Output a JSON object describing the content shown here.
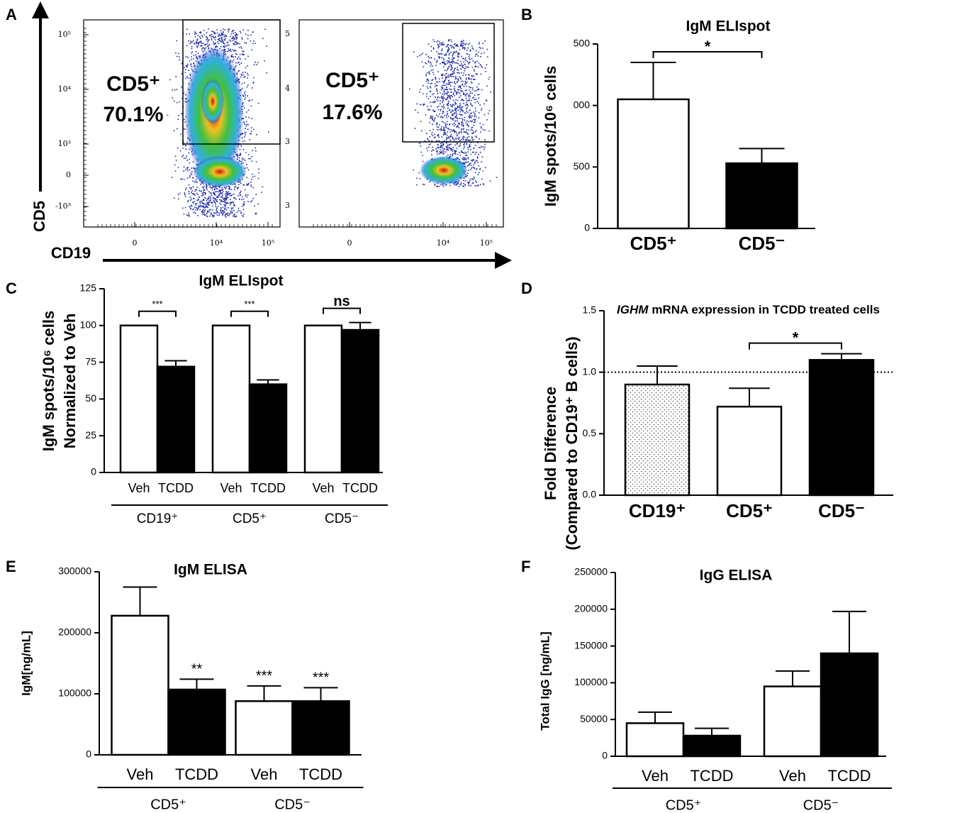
{
  "chart_data": [
    {
      "type": "flow",
      "panel": "A",
      "y_label": "CD5",
      "x_label": "CD19",
      "yticks": [
        {
          "value": 100000,
          "label": "10⁵"
        },
        {
          "value": 10000,
          "label": "10⁴"
        },
        {
          "value": 1000,
          "label": "10³"
        },
        0,
        {
          "value": -1000,
          "label": "-10³"
        }
      ],
      "xticks": [
        0,
        {
          "value": 10000,
          "label": "10⁴"
        },
        {
          "value": 100000,
          "label": "10⁵"
        }
      ],
      "plots": [
        {
          "gate_label": "CD5⁺",
          "percent": "70.1%"
        },
        {
          "gate_label": "CD5⁺",
          "percent": "17.6%",
          "y_tick_fragments": [
            "5",
            "4",
            "3",
            "3"
          ]
        }
      ]
    },
    {
      "type": "bar",
      "panel": "B",
      "title": "IgM ELIspot",
      "y_label": "IgM spots/10⁶ cells",
      "categories": [
        "CD5⁺",
        "CD5⁻"
      ],
      "values": [
        1050,
        530
      ],
      "errors": [
        300,
        120
      ],
      "colors": [
        "#ffffff",
        "#000000"
      ],
      "ylim": [
        0,
        1500
      ],
      "yticks": [
        0,
        500,
        {
          "value": 1000,
          "label": "000"
        },
        {
          "value": 1500,
          "label": "500"
        }
      ],
      "significance": [
        {
          "between": [
            0,
            1
          ],
          "label": "*"
        }
      ]
    },
    {
      "type": "grouped_bar",
      "panel": "C",
      "title": "IgM ELIspot",
      "y_label": [
        "IgM spots/10⁶ cells",
        "Normalized to Veh"
      ],
      "groups": [
        "CD19⁺",
        "CD5⁺",
        "CD5⁻"
      ],
      "series": [
        {
          "name": "Veh",
          "color": "#ffffff",
          "values": [
            100,
            100,
            100
          ]
        },
        {
          "name": "TCDD",
          "color": "#000000",
          "values": [
            72,
            60,
            97
          ],
          "errors": [
            4,
            3,
            5
          ]
        }
      ],
      "ylim": [
        0,
        125
      ],
      "yticks": [
        0,
        25,
        50,
        75,
        100,
        125
      ],
      "group_significance": [
        "***",
        "***",
        "ns"
      ]
    },
    {
      "type": "bar",
      "panel": "D",
      "title_gene": "IGHM",
      "title": "mRNA expression in TCDD treated cells",
      "y_label": [
        "Fold Difference",
        "(Compared to CD19⁺ B cells)"
      ],
      "categories": [
        "CD19⁺",
        "CD5⁺",
        "CD5⁻"
      ],
      "values": [
        0.9,
        0.72,
        1.1
      ],
      "errors": [
        0.15,
        0.15,
        0.05
      ],
      "colors": [
        "dotted",
        "#ffffff",
        "#000000"
      ],
      "ylim": [
        0,
        1.5
      ],
      "yticks": [
        {
          "value": 0,
          "label": "0.0"
        },
        0.5,
        {
          "value": 1,
          "label": "1.0"
        },
        1.5
      ],
      "reference_line": 1,
      "significance": [
        {
          "between": [
            1,
            2
          ],
          "label": "*"
        }
      ]
    },
    {
      "type": "grouped_bar",
      "panel": "E",
      "title": "IgM ELISA",
      "y_label": "IgM[ng/mL]",
      "groups": [
        "CD5⁺",
        "CD5⁻"
      ],
      "series": [
        {
          "name": "Veh",
          "color": "#ffffff",
          "values": [
            228000,
            88000
          ],
          "errors": [
            47000,
            25000
          ],
          "annotations": [
            null,
            "***"
          ]
        },
        {
          "name": "TCDD",
          "color": "#000000",
          "values": [
            107000,
            88000
          ],
          "errors": [
            17000,
            22000
          ],
          "annotations": [
            "**",
            "***"
          ]
        }
      ],
      "ylim": [
        0,
        300000
      ],
      "yticks": [
        0,
        100000,
        200000,
        300000
      ]
    },
    {
      "type": "grouped_bar",
      "panel": "F",
      "title": "IgG ELISA",
      "y_label": "Total IgG [ng/mL]",
      "groups": [
        "CD5⁺",
        "CD5⁻"
      ],
      "series": [
        {
          "name": "Veh",
          "color": "#ffffff",
          "values": [
            45000,
            95000
          ],
          "errors": [
            15000,
            21000
          ]
        },
        {
          "name": "TCDD",
          "color": "#000000",
          "values": [
            28000,
            140000
          ],
          "errors": [
            10000,
            57000
          ]
        }
      ],
      "ylim": [
        0,
        250000
      ],
      "yticks": [
        0,
        50000,
        100000,
        150000,
        200000,
        250000
      ]
    }
  ]
}
